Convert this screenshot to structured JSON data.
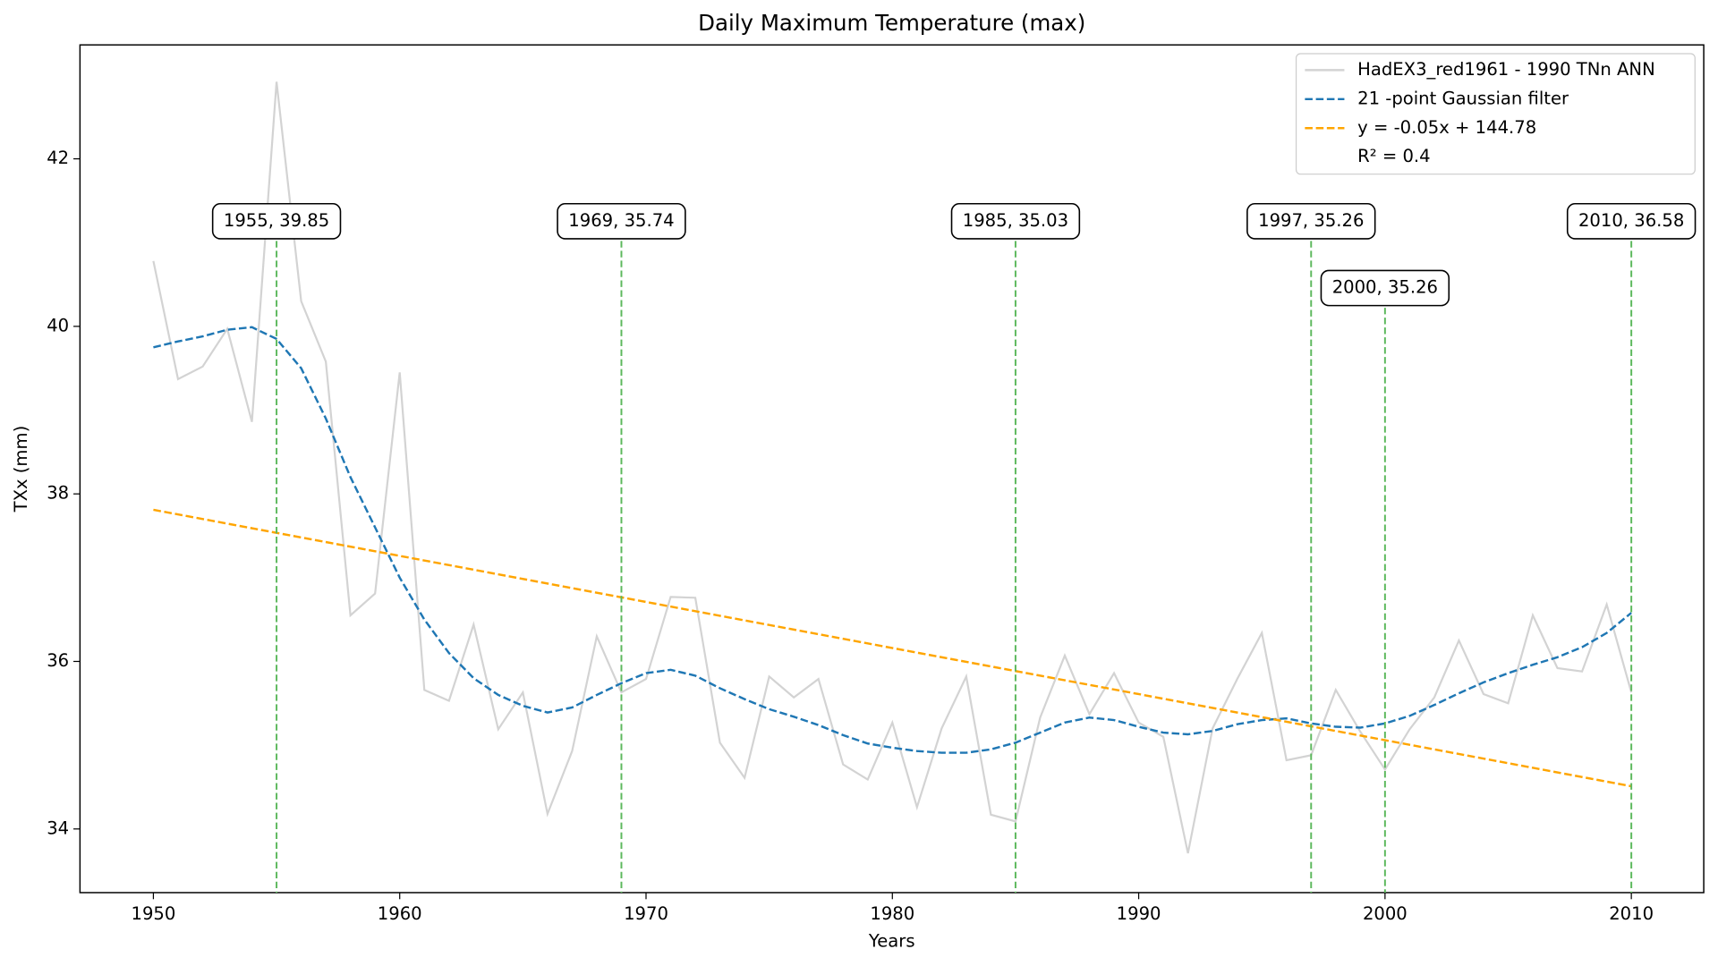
{
  "chart_data": {
    "type": "line",
    "title": "Daily Maximum Temperature (max)",
    "x_label": "Years",
    "y_label": "TXx (mm)",
    "x": [
      1950,
      1951,
      1952,
      1953,
      1954,
      1955,
      1956,
      1957,
      1958,
      1959,
      1960,
      1961,
      1962,
      1963,
      1964,
      1965,
      1966,
      1967,
      1968,
      1969,
      1970,
      1971,
      1972,
      1973,
      1974,
      1975,
      1976,
      1977,
      1978,
      1979,
      1980,
      1981,
      1982,
      1983,
      1984,
      1985,
      1986,
      1987,
      1988,
      1989,
      1990,
      1991,
      1992,
      1993,
      1994,
      1995,
      1996,
      1997,
      1998,
      1999,
      2000,
      2001,
      2002,
      2003,
      2004,
      2005,
      2006,
      2007,
      2008,
      2009,
      2010
    ],
    "series": [
      {
        "name": "HadEX3_red1961 - 1990 TNn ANN",
        "color": "#d3d3d3",
        "style": "solid",
        "values": [
          40.78,
          39.37,
          39.52,
          39.97,
          38.86,
          42.92,
          40.3,
          39.58,
          36.55,
          36.81,
          39.45,
          35.66,
          35.53,
          36.44,
          35.19,
          35.63,
          34.18,
          34.93,
          36.3,
          35.63,
          35.79,
          36.77,
          36.76,
          35.03,
          34.61,
          35.82,
          35.57,
          35.79,
          34.77,
          34.59,
          35.27,
          34.26,
          35.2,
          35.82,
          34.17,
          34.09,
          35.33,
          36.07,
          35.37,
          35.86,
          35.27,
          35.1,
          33.71,
          35.2,
          35.79,
          36.34,
          34.82,
          34.88,
          35.66,
          35.16,
          34.71,
          35.19,
          35.57,
          36.25,
          35.61,
          35.5,
          36.55,
          35.92,
          35.88,
          36.68,
          35.63
        ]
      },
      {
        "name": "21 -point Gaussian filter",
        "color": "#1f77b4",
        "style": "dashed",
        "values": [
          39.75,
          39.82,
          39.88,
          39.96,
          39.99,
          39.85,
          39.5,
          38.9,
          38.2,
          37.6,
          37.0,
          36.5,
          36.1,
          35.8,
          35.6,
          35.47,
          35.39,
          35.45,
          35.6,
          35.74,
          35.86,
          35.9,
          35.83,
          35.68,
          35.55,
          35.43,
          35.34,
          35.24,
          35.12,
          35.02,
          34.97,
          34.93,
          34.91,
          34.91,
          34.95,
          35.03,
          35.15,
          35.27,
          35.33,
          35.3,
          35.22,
          35.15,
          35.13,
          35.17,
          35.25,
          35.3,
          35.32,
          35.26,
          35.22,
          35.21,
          35.26,
          35.35,
          35.48,
          35.62,
          35.75,
          35.86,
          35.96,
          36.05,
          36.17,
          36.34,
          36.58
        ]
      },
      {
        "name": "y = -0.05x + 144.78",
        "color": "#ffa500",
        "style": "dashed",
        "x": [
          1950,
          2010
        ],
        "values": [
          37.81,
          34.51
        ]
      }
    ],
    "legend_extra": "R² = 0.4",
    "legend_position": "upper right",
    "annotations": [
      {
        "x": 1955,
        "label": "1955, 39.85"
      },
      {
        "x": 1969,
        "label": "1969, 35.74"
      },
      {
        "x": 1985,
        "label": "1985, 35.03"
      },
      {
        "x": 1997,
        "label": "1997, 35.26"
      },
      {
        "x": 2000,
        "label": "2000, 35.26"
      },
      {
        "x": 2010,
        "label": "2010, 36.58"
      }
    ],
    "annotation_color": "#5cb85c",
    "xlim": [
      1947.02,
      2012.94
    ],
    "ylim": [
      33.24,
      43.36
    ],
    "xticks": [
      1950,
      1960,
      1970,
      1980,
      1990,
      2000,
      2010
    ],
    "yticks": [
      34,
      36,
      38,
      40,
      42
    ]
  }
}
